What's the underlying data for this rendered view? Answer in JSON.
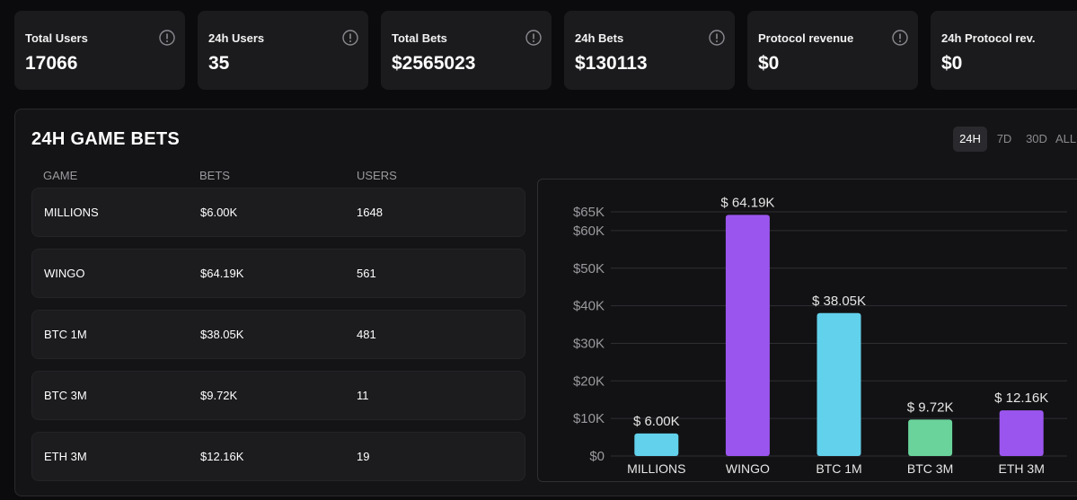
{
  "stats": [
    {
      "label": "Total Users",
      "value": "17066"
    },
    {
      "label": "24h Users",
      "value": "35"
    },
    {
      "label": "Total Bets",
      "value": "$2565023"
    },
    {
      "label": "24h Bets",
      "value": "$130113"
    },
    {
      "label": "Protocol revenue",
      "value": "$0"
    },
    {
      "label": "24h Protocol rev.",
      "value": "$0"
    }
  ],
  "panel": {
    "title": "24H GAME BETS",
    "ranges": [
      "24H",
      "7D",
      "30D",
      "ALL"
    ],
    "active_range": "24H"
  },
  "table": {
    "headers": [
      "GAME",
      "BETS",
      "USERS"
    ],
    "rows": [
      {
        "game": "MILLIONS",
        "bets": "$6.00K",
        "users": "1648"
      },
      {
        "game": "WINGO",
        "bets": "$64.19K",
        "users": "561"
      },
      {
        "game": "BTC 1M",
        "bets": "$38.05K",
        "users": "481"
      },
      {
        "game": "BTC 3M",
        "bets": "$9.72K",
        "users": "11"
      },
      {
        "game": "ETH 3M",
        "bets": "$12.16K",
        "users": "19"
      }
    ]
  },
  "chart_data": {
    "type": "bar",
    "categories": [
      "MILLIONS",
      "WINGO",
      "BTC 1M",
      "BTC 3M",
      "ETH 3M"
    ],
    "values": [
      6.0,
      64.19,
      38.05,
      9.72,
      12.16
    ],
    "value_labels": [
      "$ 6.00K",
      "$ 64.19K",
      "$ 38.05K",
      "$ 9.72K",
      "$ 12.16K"
    ],
    "colors": [
      "#62d1ec",
      "#9b55ef",
      "#62d1ec",
      "#69d39b",
      "#9b55ef"
    ],
    "y_ticks": [
      0,
      10,
      20,
      30,
      40,
      50,
      60,
      65
    ],
    "y_tick_labels": [
      "$0",
      "$10K",
      "$20K",
      "$30K",
      "$40K",
      "$50K",
      "$60K",
      "$65K"
    ],
    "ylim": [
      0,
      65
    ],
    "title": "",
    "xlabel": "",
    "ylabel": "",
    "grid": true
  },
  "colors": {
    "background": "#0b0b0d",
    "card": "#1b1b1e",
    "panel": "#141416",
    "text": "#ffffff",
    "muted": "#9a9a9f"
  },
  "icons": {
    "info": "info-circle-icon"
  }
}
